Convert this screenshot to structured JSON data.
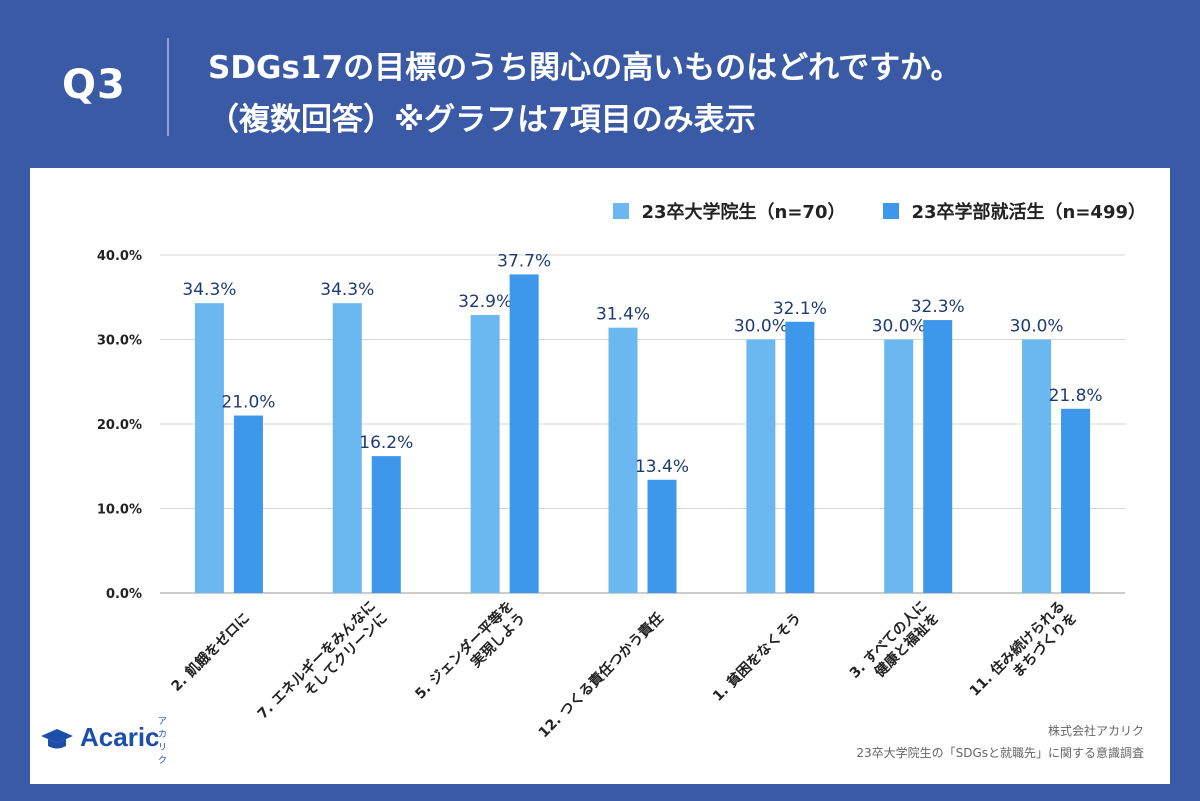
{
  "header": {
    "q_label": "Q3",
    "title_line1": "SDGs17の目標のうち関心の高いものはどれですか。",
    "title_line2": "（複数回答）※グラフは7項目のみ表示"
  },
  "legend": [
    {
      "name": "23卒大学院生（n=70）",
      "color": "#6bb8f0"
    },
    {
      "name": "23卒学部就活生（n=499）",
      "color": "#3d97ea"
    }
  ],
  "footer": {
    "logo_text": "Acaric",
    "logo_kana": "アカリク",
    "source_line1": "株式会社アカリク",
    "source_line2": "23卒大学院生の「SDGsと就職先」に関する意識調査"
  },
  "chart_data": {
    "type": "bar",
    "title": "SDGs17の目標のうち関心の高いものはどれですか。（複数回答）※グラフは7項目のみ表示",
    "xlabel": "",
    "ylabel": "",
    "ylim": [
      0,
      40
    ],
    "yticks": [
      "0.0%",
      "10.0%",
      "20.0%",
      "30.0%",
      "40.0%"
    ],
    "grid": true,
    "legend_position": "top-right",
    "categories": [
      [
        "2. 飢餓をゼロに"
      ],
      [
        "7. エネルギーをみんなに",
        "そしてクリーンに"
      ],
      [
        "5. ジェンダー平等を",
        "実現しよう"
      ],
      [
        "12. つくる責任つかう責任"
      ],
      [
        "1. 貧困をなくそう"
      ],
      [
        "3. すべての人に",
        "健康と福祉を"
      ],
      [
        "11. 住み続けられる",
        "まちづくりを"
      ]
    ],
    "series": [
      {
        "name": "23卒大学院生（n=70）",
        "color": "#6bb8f0",
        "values": [
          34.3,
          34.3,
          32.9,
          31.4,
          30.0,
          30.0,
          30.0
        ],
        "labels": [
          "34.3%",
          "34.3%",
          "32.9%",
          "31.4%",
          "30.0%",
          "30.0%",
          "30.0%"
        ]
      },
      {
        "name": "23卒学部就活生（n=499）",
        "color": "#3d97ea",
        "values": [
          21.0,
          16.2,
          37.7,
          13.4,
          32.1,
          32.3,
          21.8
        ],
        "labels": [
          "21.0%",
          "16.2%",
          "37.7%",
          "13.4%",
          "32.1%",
          "32.3%",
          "21.8%"
        ]
      }
    ]
  }
}
